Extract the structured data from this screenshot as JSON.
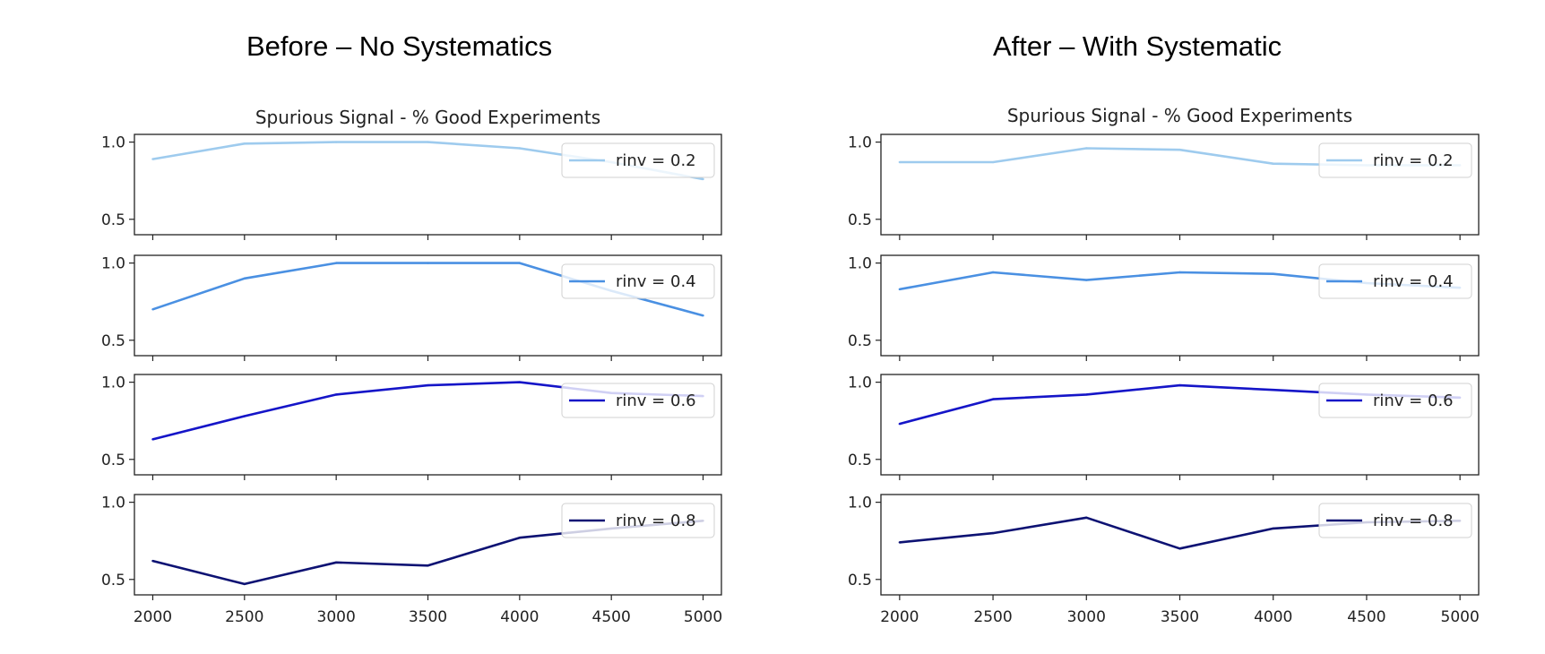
{
  "titles": {
    "left": "Before – No Systematics",
    "right": "After – With Systematic"
  },
  "colors": {
    "rinv_0_2": "#9ecbee",
    "rinv_0_4": "#4a90e2",
    "rinv_0_6": "#1515c8",
    "rinv_0_8": "#0d1273"
  },
  "chart_data": [
    {
      "type": "line",
      "title": "Spurious Signal - % Good Experiments",
      "x": [
        2000,
        2500,
        3000,
        3500,
        4000,
        4500,
        5000
      ],
      "xticks": [
        "2000",
        "2500",
        "3000",
        "3500",
        "4000",
        "4500",
        "5000"
      ],
      "yticks": [
        "0.5",
        "1.0"
      ],
      "ylim": [
        0.4,
        1.05
      ],
      "panels": [
        {
          "name": "rinv = 0.2",
          "color_key": "rinv_0_2",
          "values": [
            0.89,
            0.99,
            1.0,
            1.0,
            0.96,
            0.87,
            0.76
          ]
        },
        {
          "name": "rinv = 0.4",
          "color_key": "rinv_0_4",
          "values": [
            0.7,
            0.9,
            1.0,
            1.0,
            1.0,
            0.82,
            0.66
          ]
        },
        {
          "name": "rinv = 0.6",
          "color_key": "rinv_0_6",
          "values": [
            0.63,
            0.78,
            0.92,
            0.98,
            1.0,
            0.93,
            0.91
          ]
        },
        {
          "name": "rinv = 0.8",
          "color_key": "rinv_0_8",
          "values": [
            0.62,
            0.47,
            0.61,
            0.59,
            0.77,
            0.83,
            0.88
          ]
        }
      ]
    },
    {
      "type": "line",
      "title": "Spurious Signal - % Good Experiments",
      "x": [
        2000,
        2500,
        3000,
        3500,
        4000,
        4500,
        5000
      ],
      "xticks": [
        "2000",
        "2500",
        "3000",
        "3500",
        "4000",
        "4500",
        "5000"
      ],
      "yticks": [
        "0.5",
        "1.0"
      ],
      "ylim": [
        0.4,
        1.05
      ],
      "panels": [
        {
          "name": "rinv = 0.2",
          "color_key": "rinv_0_2",
          "values": [
            0.87,
            0.87,
            0.96,
            0.95,
            0.86,
            0.85,
            0.85
          ]
        },
        {
          "name": "rinv = 0.4",
          "color_key": "rinv_0_4",
          "values": [
            0.83,
            0.94,
            0.89,
            0.94,
            0.93,
            0.87,
            0.84
          ]
        },
        {
          "name": "rinv = 0.6",
          "color_key": "rinv_0_6",
          "values": [
            0.73,
            0.89,
            0.92,
            0.98,
            0.95,
            0.92,
            0.9
          ]
        },
        {
          "name": "rinv = 0.8",
          "color_key": "rinv_0_8",
          "values": [
            0.74,
            0.8,
            0.9,
            0.7,
            0.83,
            0.87,
            0.88
          ]
        }
      ]
    }
  ]
}
